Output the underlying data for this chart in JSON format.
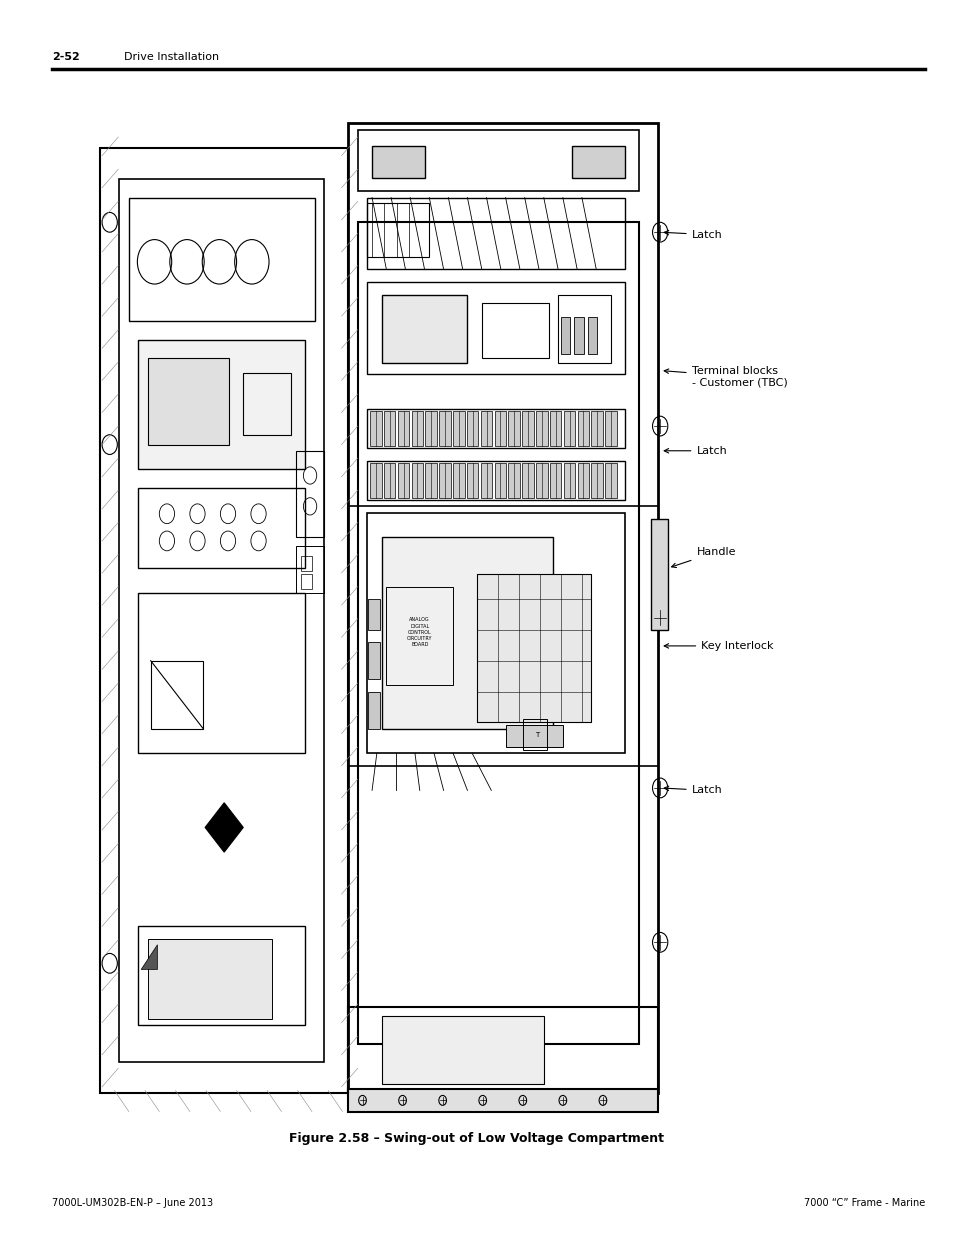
{
  "page_title": "2-52",
  "page_title_label": "Drive Installation",
  "figure_caption": "Figure 2.58 – Swing-out of Low Voltage Compartment",
  "footer_left": "7000L-UM302B-EN-P – June 2013",
  "footer_right": "7000 “C” Frame - Marine",
  "background_color": "#ffffff",
  "text_color": "#000000",
  "line_color": "#000000"
}
